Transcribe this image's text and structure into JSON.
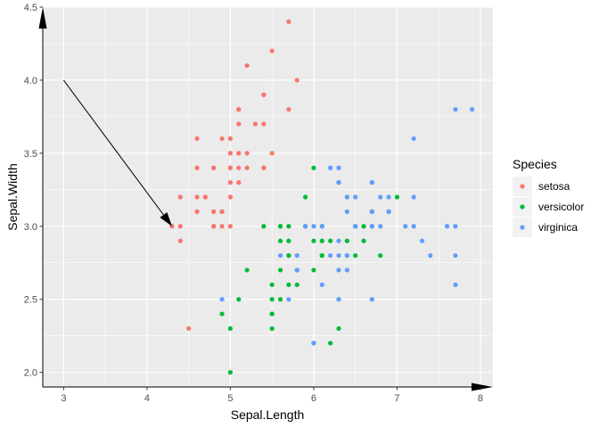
{
  "chart_data": {
    "type": "scatter",
    "title": "",
    "xlabel": "Sepal.Length",
    "ylabel": "Sepal.Width",
    "xlim": [
      2.75,
      8.15
    ],
    "ylim": [
      1.9,
      4.5
    ],
    "x_ticks": [
      "3",
      "4",
      "5",
      "6",
      "7",
      "8"
    ],
    "y_ticks": [
      "2.0",
      "2.5",
      "3.0",
      "3.5",
      "4.0",
      "4.5"
    ],
    "grid": true,
    "panel_background": "#ebebeb",
    "legend": {
      "title": "Species",
      "position": "right"
    },
    "series": [
      {
        "name": "setosa",
        "color": "#f8766d",
        "points": [
          [
            5.1,
            3.5
          ],
          [
            4.9,
            3.0
          ],
          [
            4.7,
            3.2
          ],
          [
            4.6,
            3.1
          ],
          [
            5.0,
            3.6
          ],
          [
            5.4,
            3.9
          ],
          [
            4.6,
            3.4
          ],
          [
            5.0,
            3.4
          ],
          [
            4.4,
            2.9
          ],
          [
            4.9,
            3.1
          ],
          [
            5.4,
            3.7
          ],
          [
            4.8,
            3.4
          ],
          [
            4.8,
            3.0
          ],
          [
            4.3,
            3.0
          ],
          [
            5.8,
            4.0
          ],
          [
            5.7,
            4.4
          ],
          [
            5.4,
            3.9
          ],
          [
            5.1,
            3.5
          ],
          [
            5.7,
            3.8
          ],
          [
            5.1,
            3.8
          ],
          [
            5.4,
            3.4
          ],
          [
            5.1,
            3.7
          ],
          [
            4.6,
            3.6
          ],
          [
            5.1,
            3.3
          ],
          [
            4.8,
            3.4
          ],
          [
            5.0,
            3.0
          ],
          [
            5.0,
            3.4
          ],
          [
            5.2,
            3.5
          ],
          [
            5.2,
            3.4
          ],
          [
            4.7,
            3.2
          ],
          [
            4.8,
            3.1
          ],
          [
            5.4,
            3.4
          ],
          [
            5.2,
            4.1
          ],
          [
            5.5,
            4.2
          ],
          [
            4.9,
            3.1
          ],
          [
            5.0,
            3.2
          ],
          [
            5.5,
            3.5
          ],
          [
            4.9,
            3.6
          ],
          [
            4.4,
            3.0
          ],
          [
            5.1,
            3.4
          ],
          [
            5.0,
            3.5
          ],
          [
            4.5,
            2.3
          ],
          [
            4.4,
            3.2
          ],
          [
            5.0,
            3.5
          ],
          [
            5.1,
            3.8
          ],
          [
            4.8,
            3.0
          ],
          [
            5.1,
            3.8
          ],
          [
            4.6,
            3.2
          ],
          [
            5.3,
            3.7
          ],
          [
            5.0,
            3.3
          ]
        ]
      },
      {
        "name": "versicolor",
        "color": "#00ba38",
        "points": [
          [
            7.0,
            3.2
          ],
          [
            6.4,
            3.2
          ],
          [
            6.9,
            3.1
          ],
          [
            5.5,
            2.3
          ],
          [
            6.5,
            2.8
          ],
          [
            5.7,
            2.8
          ],
          [
            6.3,
            3.3
          ],
          [
            4.9,
            2.4
          ],
          [
            6.6,
            2.9
          ],
          [
            5.2,
            2.7
          ],
          [
            5.0,
            2.0
          ],
          [
            5.9,
            3.0
          ],
          [
            6.0,
            2.2
          ],
          [
            6.1,
            2.9
          ],
          [
            5.6,
            2.9
          ],
          [
            6.7,
            3.1
          ],
          [
            5.6,
            3.0
          ],
          [
            5.8,
            2.7
          ],
          [
            6.2,
            2.2
          ],
          [
            5.6,
            2.5
          ],
          [
            5.9,
            3.2
          ],
          [
            6.1,
            2.8
          ],
          [
            6.3,
            2.5
          ],
          [
            6.1,
            2.8
          ],
          [
            6.4,
            2.9
          ],
          [
            6.6,
            3.0
          ],
          [
            6.8,
            2.8
          ],
          [
            6.7,
            3.0
          ],
          [
            6.0,
            2.9
          ],
          [
            5.7,
            2.6
          ],
          [
            5.5,
            2.4
          ],
          [
            5.5,
            2.4
          ],
          [
            5.8,
            2.7
          ],
          [
            6.0,
            2.7
          ],
          [
            5.4,
            3.0
          ],
          [
            6.0,
            3.4
          ],
          [
            6.7,
            3.1
          ],
          [
            6.3,
            2.3
          ],
          [
            5.6,
            3.0
          ],
          [
            5.5,
            2.5
          ],
          [
            5.5,
            2.6
          ],
          [
            6.1,
            3.0
          ],
          [
            5.8,
            2.6
          ],
          [
            5.0,
            2.3
          ],
          [
            5.6,
            2.7
          ],
          [
            5.7,
            3.0
          ],
          [
            5.7,
            2.9
          ],
          [
            6.2,
            2.9
          ],
          [
            5.1,
            2.5
          ],
          [
            5.7,
            2.8
          ]
        ]
      },
      {
        "name": "virginica",
        "color": "#619cff",
        "points": [
          [
            6.3,
            3.3
          ],
          [
            5.8,
            2.7
          ],
          [
            7.1,
            3.0
          ],
          [
            6.3,
            2.9
          ],
          [
            6.5,
            3.0
          ],
          [
            7.6,
            3.0
          ],
          [
            4.9,
            2.5
          ],
          [
            7.3,
            2.9
          ],
          [
            6.7,
            2.5
          ],
          [
            7.2,
            3.6
          ],
          [
            6.5,
            3.2
          ],
          [
            6.4,
            2.7
          ],
          [
            6.8,
            3.0
          ],
          [
            5.7,
            2.5
          ],
          [
            5.8,
            2.8
          ],
          [
            6.4,
            3.2
          ],
          [
            6.5,
            3.0
          ],
          [
            7.7,
            3.8
          ],
          [
            7.7,
            2.6
          ],
          [
            6.0,
            2.2
          ],
          [
            6.9,
            3.2
          ],
          [
            5.6,
            2.8
          ],
          [
            7.7,
            2.8
          ],
          [
            6.3,
            2.7
          ],
          [
            6.7,
            3.3
          ],
          [
            7.2,
            3.2
          ],
          [
            6.2,
            2.8
          ],
          [
            6.1,
            3.0
          ],
          [
            6.4,
            2.8
          ],
          [
            7.2,
            3.0
          ],
          [
            7.4,
            2.8
          ],
          [
            7.9,
            3.8
          ],
          [
            6.4,
            2.8
          ],
          [
            6.3,
            2.8
          ],
          [
            6.1,
            2.6
          ],
          [
            7.7,
            3.0
          ],
          [
            6.3,
            3.4
          ],
          [
            6.4,
            3.1
          ],
          [
            6.0,
            3.0
          ],
          [
            6.9,
            3.1
          ],
          [
            6.7,
            3.1
          ],
          [
            6.9,
            3.1
          ],
          [
            5.8,
            2.7
          ],
          [
            6.8,
            3.2
          ],
          [
            6.7,
            3.3
          ],
          [
            6.7,
            3.0
          ],
          [
            6.3,
            2.5
          ],
          [
            6.5,
            3.0
          ],
          [
            6.2,
            3.4
          ],
          [
            5.9,
            3.0
          ]
        ]
      }
    ],
    "annotations": [
      {
        "type": "arrow",
        "from": [
          3.0,
          4.0
        ],
        "to": [
          4.3,
          3.0
        ]
      }
    ],
    "axis_arrows": {
      "x": true,
      "y": true
    }
  }
}
